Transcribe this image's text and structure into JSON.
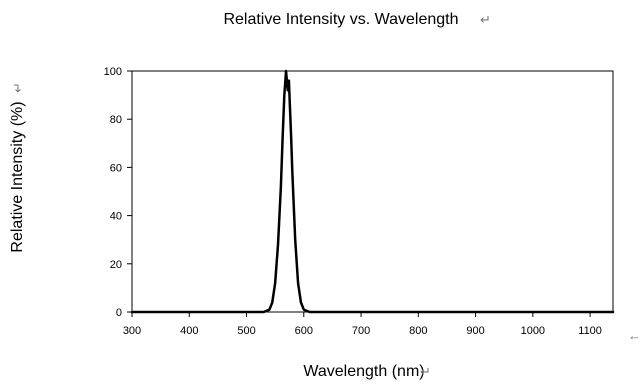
{
  "chart_data": {
    "type": "line",
    "title": "Relative Intensity vs. Wavelength",
    "xlabel": "Wavelength (nm)",
    "ylabel": "Relative Intensity (%)",
    "xlim": [
      300,
      1140
    ],
    "ylim": [
      0,
      100
    ],
    "xticks": [
      300,
      400,
      500,
      600,
      700,
      800,
      900,
      1000,
      1100
    ],
    "yticks": [
      0,
      20,
      40,
      60,
      80,
      100
    ],
    "x_tick_labels": [
      "300",
      "400",
      "500",
      "600",
      "700",
      "800",
      "900",
      "1000",
      "1100"
    ],
    "y_tick_labels": [
      "0",
      "20",
      "40",
      "60",
      "80",
      "100"
    ],
    "grid": false,
    "line_color": "#000000",
    "series": [
      {
        "x": [
          300,
          500,
          530,
          540,
          545,
          550,
          555,
          560,
          563,
          566,
          569,
          572,
          574,
          576,
          578,
          580,
          585,
          590,
          595,
          600,
          610,
          650,
          800,
          1000,
          1140
        ],
        "y": [
          0,
          0,
          0,
          1,
          4,
          12,
          28,
          52,
          72,
          90,
          100,
          92,
          96,
          84,
          72,
          58,
          30,
          12,
          4,
          1,
          0,
          0,
          0,
          0,
          0
        ]
      }
    ]
  },
  "text_marks": {
    "title_mark": "↵",
    "ylabel_mark": "↵",
    "xlabel_mark": "↵",
    "right_mark": "←"
  }
}
